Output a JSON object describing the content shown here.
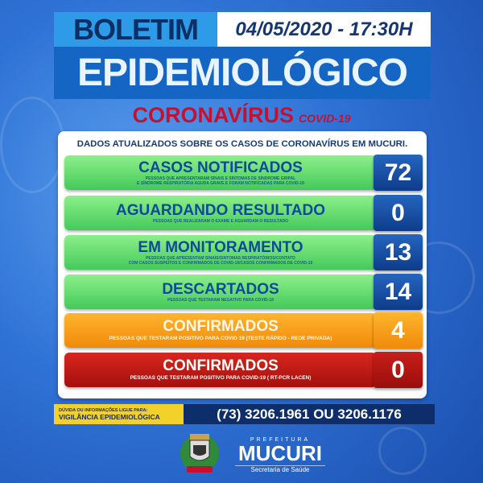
{
  "header": {
    "boletim": "BOLETIM",
    "date": "04/05/2020 - 17:30H",
    "epidemiologico": "EPIDEMIOLÓGICO",
    "coronavirus": "CORONAVÍRUS",
    "covid": "COVID-19"
  },
  "panel": {
    "title": "DADOS ATUALIZADOS SOBRE OS CASOS DE CORONAVÍRUS EM MUCURI.",
    "rows": [
      {
        "title": "CASOS NOTIFICADOS",
        "sub1": "PESSOAS QUE APRESENTARAM SINAIS E SINTOMAS DE SÍNDROME GRIPAL",
        "sub2": "E SÍNDROME RESPIRATÓRIA AGUDA GRAVE E FORAM NOTIFICADAS PARA COVID-19",
        "value": "72",
        "color": "#45c95a"
      },
      {
        "title": "AGUARDANDO RESULTADO",
        "sub1": "PESSOAS QUE REALIZARAM O EXAME E AGUARDAM O RESULTADO",
        "value": "0",
        "color": "#45c95a"
      },
      {
        "title": "EM MONITORAMENTO",
        "sub1": "PESSOAS QUE APRESENTAM SINAIS/SINTOMAS RESPIRATÓRIOS/CONTATO",
        "sub2": "COM CASOS SUSPEITOS E CONFIRMADOS DE COVID-19/CASOS CONFIRMADOS DE COVID-19",
        "value": "13",
        "color": "#45c95a"
      },
      {
        "title": "DESCARTADOS",
        "sub1": "PESSOAS QUE TESTARAM NEGATIVO PARA COVID-19",
        "value": "14",
        "color": "#45c95a"
      },
      {
        "title": "CONFIRMADOS",
        "sub1": "PESSOAS QUE TESTARAM POSITIVO PARA COVID 19  (TESTE RÁPIDO - REDE PRIVADA)",
        "value": "4",
        "color": "#f08a0a"
      },
      {
        "title": "CONFIRMADOS",
        "sub1": "PESSOAS QUE TESTARAM POSITIVO PARA COVID-19 ( RT-PCR LACEN)",
        "value": "0",
        "color": "#a5100d"
      }
    ]
  },
  "footer": {
    "info1": "DÚVIDA OU INFORMAÇÕES LIGUE PARA:",
    "info2": "VIGILÂNCIA EPIDEMIOLÓGICA",
    "phones": "(73) 3206.1961 OU 3206.1176",
    "prefeitura": "PREFEITURA",
    "city": "MUCURI",
    "secretaria": "Secretaria de Saúde"
  }
}
